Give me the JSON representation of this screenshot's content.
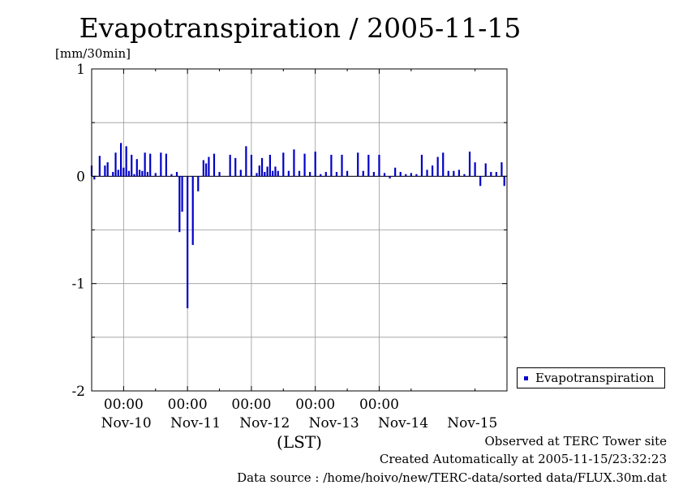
{
  "chart_data": {
    "type": "bar",
    "title": "Evapotranspiration / 2005-11-15",
    "ylabel": "[mm/30min]",
    "xlabel": "(LST)",
    "ylim": [
      -2,
      1
    ],
    "y_ticks": [
      "1",
      "0",
      "-1",
      "-2"
    ],
    "x_time_labels": [
      "00:00",
      "00:00",
      "00:00",
      "00:00",
      "00:00"
    ],
    "x_day_labels": [
      "Nov-10",
      "Nov-11",
      "Nov-12",
      "Nov-13",
      "Nov-14",
      "Nov-15"
    ],
    "x_start": "2005-11-09 12:00",
    "x_end": "2005-11-15 24:00",
    "bar_color": "#0000c8",
    "grid": true,
    "legend_position": "right",
    "series": [
      {
        "name": "Evapotranspiration",
        "x": [
          "2005-11-09 12:00",
          "2005-11-09 13:00",
          "2005-11-09 15:00",
          "2005-11-09 17:00",
          "2005-11-09 18:00",
          "2005-11-09 20:00",
          "2005-11-09 21:00",
          "2005-11-09 22:00",
          "2005-11-09 23:00",
          "2005-11-10 00:00",
          "2005-11-10 01:00",
          "2005-11-10 02:00",
          "2005-11-10 03:00",
          "2005-11-10 04:00",
          "2005-11-10 05:00",
          "2005-11-10 06:00",
          "2005-11-10 07:00",
          "2005-11-10 08:00",
          "2005-11-10 09:00",
          "2005-11-10 10:00",
          "2005-11-10 12:00",
          "2005-11-10 14:00",
          "2005-11-10 16:00",
          "2005-11-10 18:00",
          "2005-11-10 20:00",
          "2005-11-10 21:00",
          "2005-11-10 22:00",
          "2005-11-11 00:00",
          "2005-11-11 02:00",
          "2005-11-11 04:00",
          "2005-11-11 06:00",
          "2005-11-11 07:00",
          "2005-11-11 08:00",
          "2005-11-11 10:00",
          "2005-11-11 12:00",
          "2005-11-11 16:00",
          "2005-11-11 18:00",
          "2005-11-11 20:00",
          "2005-11-11 22:00",
          "2005-11-12 00:00",
          "2005-11-12 02:00",
          "2005-11-12 03:00",
          "2005-11-12 04:00",
          "2005-11-12 05:00",
          "2005-11-12 06:00",
          "2005-11-12 07:00",
          "2005-11-12 08:00",
          "2005-11-12 09:00",
          "2005-11-12 10:00",
          "2005-11-12 12:00",
          "2005-11-12 14:00",
          "2005-11-12 16:00",
          "2005-11-12 18:00",
          "2005-11-12 20:00",
          "2005-11-12 22:00",
          "2005-11-13 00:00",
          "2005-11-13 02:00",
          "2005-11-13 04:00",
          "2005-11-13 06:00",
          "2005-11-13 08:00",
          "2005-11-13 10:00",
          "2005-11-13 12:00",
          "2005-11-13 16:00",
          "2005-11-13 18:00",
          "2005-11-13 20:00",
          "2005-11-13 22:00",
          "2005-11-14 00:00",
          "2005-11-14 02:00",
          "2005-11-14 04:00",
          "2005-11-14 06:00",
          "2005-11-14 08:00",
          "2005-11-14 10:00",
          "2005-11-14 12:00",
          "2005-11-14 14:00",
          "2005-11-14 16:00",
          "2005-11-14 18:00",
          "2005-11-14 20:00",
          "2005-11-14 22:00",
          "2005-11-15 00:00",
          "2005-11-15 02:00",
          "2005-11-15 04:00",
          "2005-11-15 06:00",
          "2005-11-15 08:00",
          "2005-11-15 10:00",
          "2005-11-15 12:00",
          "2005-11-15 14:00",
          "2005-11-15 16:00",
          "2005-11-15 18:00",
          "2005-11-15 20:00",
          "2005-11-15 22:00",
          "2005-11-15 23:00"
        ],
        "values": [
          0.1,
          -0.03,
          0.19,
          0.1,
          0.13,
          0.04,
          0.22,
          0.06,
          0.31,
          0.08,
          0.28,
          0.05,
          0.2,
          0.02,
          0.16,
          0.06,
          0.05,
          0.22,
          0.04,
          0.21,
          0.03,
          0.22,
          0.21,
          0.02,
          0.04,
          -0.52,
          -0.33,
          -1.23,
          -0.64,
          -0.14,
          0.15,
          0.12,
          0.18,
          0.21,
          0.04,
          0.2,
          0.17,
          0.06,
          0.28,
          0.2,
          0.03,
          0.1,
          0.17,
          0.04,
          0.09,
          0.2,
          0.05,
          0.09,
          0.05,
          0.22,
          0.05,
          0.25,
          0.05,
          0.21,
          0.04,
          0.23,
          0.02,
          0.04,
          0.2,
          0.04,
          0.2,
          0.05,
          0.22,
          0.05,
          0.2,
          0.04,
          0.2,
          0.03,
          -0.02,
          0.08,
          0.04,
          0.02,
          0.03,
          0.02,
          0.2,
          0.06,
          0.1,
          0.18,
          0.22,
          0.05,
          0.05,
          0.06,
          0.02,
          0.23,
          0.13,
          -0.09,
          0.12,
          0.04,
          0.04,
          0.13,
          -0.09
        ]
      }
    ]
  },
  "footer": {
    "observed": "Observed at TERC Tower site",
    "created": "Created Automatically at 2005-11-15/23:32:23",
    "source": "Data source : /home/hoivo/new/TERC-data/sorted  data/FLUX.30m.dat"
  }
}
